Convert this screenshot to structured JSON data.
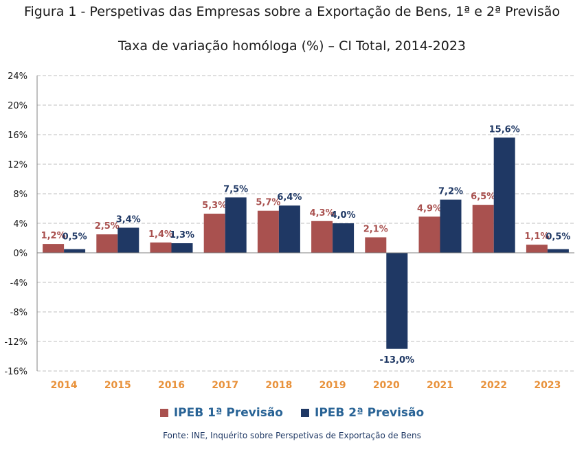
{
  "title": "Figura 1 - Perspetivas das Empresas sobre a Exportação de Bens, 1ª e 2ª Previsão",
  "subtitle": "Taxa de variação homóloga (%) – CI Total, 2014-2023",
  "source": "Fonte: INE, Inquérito sobre Perspetivas de Exportação de Bens",
  "colors": {
    "series1": "#a9514f",
    "series2": "#1f3864",
    "category": "#e8913a",
    "legend_text": "#2a6496"
  },
  "chart_data": {
    "type": "bar",
    "categories": [
      "2014",
      "2015",
      "2016",
      "2017",
      "2018",
      "2019",
      "2020",
      "2021",
      "2022",
      "2023"
    ],
    "series": [
      {
        "name": "IPEB 1ª Previsão",
        "values": [
          1.2,
          2.5,
          1.4,
          5.3,
          5.7,
          4.3,
          2.1,
          4.9,
          6.5,
          1.1
        ],
        "labels": [
          "1,2%",
          "2,5%",
          "1,4%",
          "5,3%",
          "5,7%",
          "4,3%",
          "2,1%",
          "4,9%",
          "6,5%",
          "1,1%"
        ]
      },
      {
        "name": "IPEB 2ª Previsão",
        "values": [
          0.5,
          3.4,
          1.3,
          7.5,
          6.4,
          4.0,
          -13.0,
          7.2,
          15.6,
          0.5
        ],
        "labels": [
          "0,5%",
          "3,4%",
          "1,3%",
          "7,5%",
          "6,4%",
          "4,0%",
          "-13,0%",
          "7,2%",
          "15,6%",
          "0,5%"
        ]
      }
    ],
    "ylim": [
      -16,
      24
    ],
    "yticks": [
      24,
      20,
      16,
      12,
      8,
      4,
      0,
      -4,
      -8,
      -12,
      -16
    ],
    "ytick_labels": [
      "24%",
      "20%",
      "16%",
      "12%",
      "8%",
      "4%",
      "0%",
      "-4%",
      "-8%",
      "-12%",
      "-16%"
    ],
    "grid": true,
    "legend_position": "bottom"
  }
}
